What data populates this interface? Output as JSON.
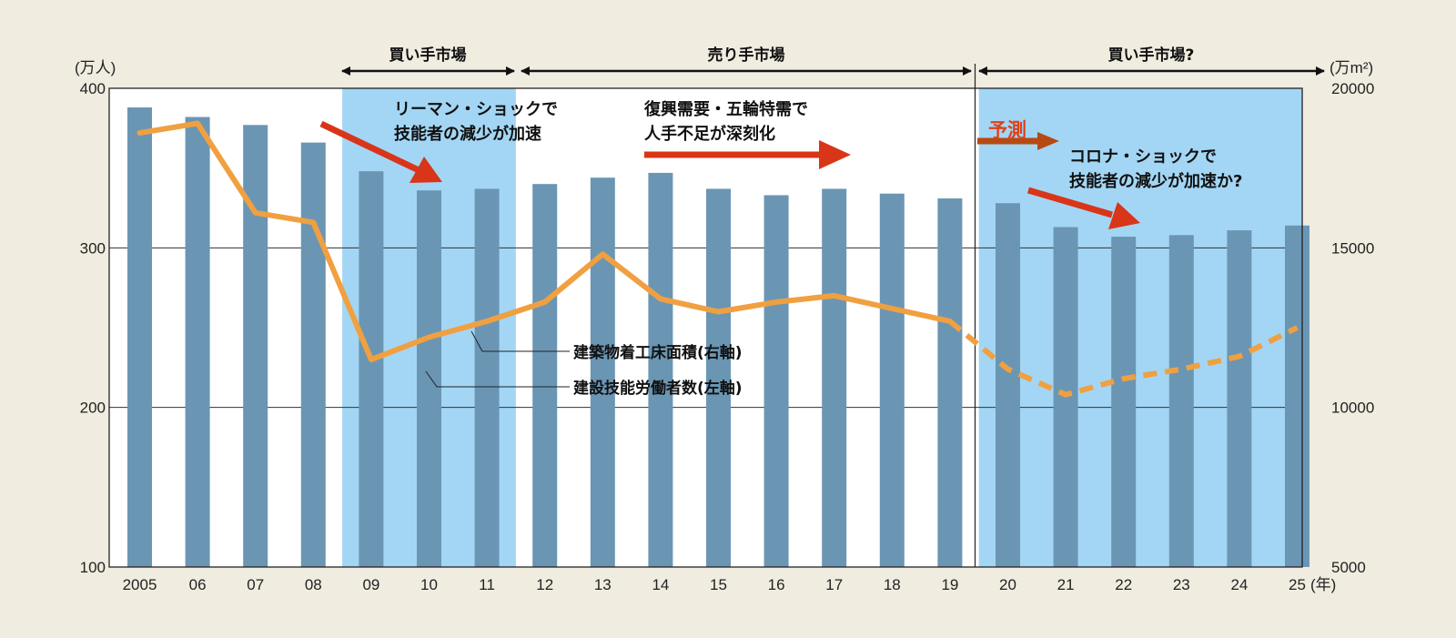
{
  "chart_data": {
    "type": "bar+line",
    "title": "",
    "x": [
      "2005",
      "06",
      "07",
      "08",
      "09",
      "10",
      "11",
      "12",
      "13",
      "14",
      "15",
      "16",
      "17",
      "18",
      "19",
      "20",
      "21",
      "22",
      "23",
      "24",
      "25"
    ],
    "x_unit": "(年)",
    "left_axis": {
      "unit": "(万人)",
      "range": [
        100,
        400
      ],
      "ticks": [
        "100",
        "200",
        "300",
        "400"
      ]
    },
    "right_axis": {
      "unit": "(万m²)",
      "range": [
        5000,
        20000
      ],
      "ticks": [
        "5000",
        "10000",
        "15000",
        "20000"
      ]
    },
    "grid": true,
    "series": [
      {
        "name": "建設技能労働者数(左軸)",
        "type": "bar",
        "axis": "left",
        "color": "#6a96b4",
        "values": [
          388,
          382,
          377,
          366,
          348,
          336,
          337,
          340,
          344,
          347,
          337,
          333,
          337,
          334,
          331,
          328,
          313,
          307,
          308,
          311,
          314
        ]
      },
      {
        "name": "建築物着工床面積(右軸)",
        "type": "line",
        "axis": "right",
        "color": "#f0a040",
        "values": [
          18600,
          18900,
          16100,
          15800,
          11500,
          12200,
          12700,
          13300,
          14800,
          13400,
          13000,
          13300,
          13500,
          13100,
          12700,
          11200,
          10400,
          10900,
          11200,
          11600,
          12500
        ],
        "forecast_from": "19"
      }
    ],
    "periods": [
      {
        "label": "買い手市場",
        "from": "08",
        "to": "11",
        "shaded": true
      },
      {
        "label": "売り手市場",
        "from": "11",
        "to": "19",
        "shaded": false
      },
      {
        "label": "買い手市場?",
        "from": "19",
        "to": "25",
        "shaded": true
      }
    ],
    "annotations": [
      {
        "lines": [
          "リーマン・ショックで",
          "技能者の減少が加速"
        ]
      },
      {
        "lines": [
          "復興需要・五輪特需で",
          "人手不足が深刻化"
        ]
      },
      {
        "text": "予測"
      },
      {
        "lines": [
          "コロナ・ショックで",
          "技能者の減少が加速か?"
        ]
      }
    ],
    "colors": {
      "background": "#f0ece0",
      "plot": "#ffffff",
      "shade": "#a3d6f4",
      "arrow_red": "#d93518",
      "forecast_arrow": "#b64a12"
    }
  }
}
